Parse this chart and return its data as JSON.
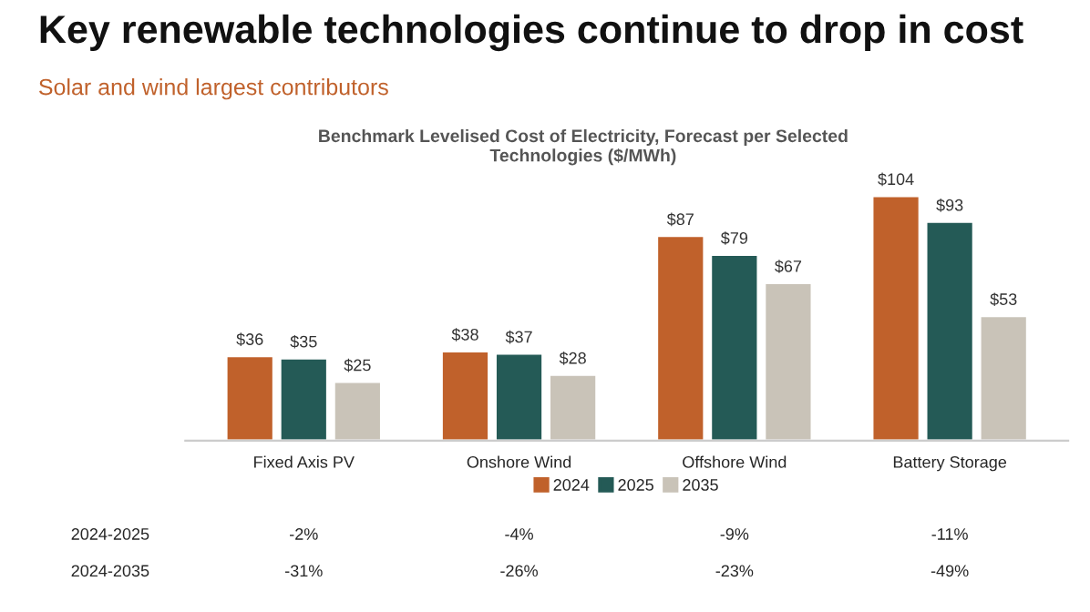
{
  "chart_data": {
    "type": "bar",
    "title": "Key renewable technologies continue to drop in cost",
    "subtitle": "Solar and wind largest contributors",
    "categories": [
      "Fixed Axis PV",
      "Onshore Wind",
      "Offshore Wind",
      "Battery Storage"
    ],
    "series": [
      {
        "name": "2024",
        "color": "#c0612b",
        "values": [
          36,
          38,
          87,
          104
        ],
        "value_labels": [
          "$36",
          "$38",
          "$87",
          "$104"
        ]
      },
      {
        "name": "2025",
        "color": "#245a56",
        "values": [
          35,
          37,
          79,
          93
        ],
        "value_labels": [
          "$35",
          "$37",
          "$79",
          "$93"
        ]
      },
      {
        "name": "2035",
        "color": "#c9c3b8",
        "values": [
          25,
          28,
          67,
          53
        ],
        "value_labels": [
          "$25",
          "$28",
          "$67",
          "$53"
        ]
      }
    ],
    "legend": "bottom",
    "grid": false,
    "annotations": [
      "Benchmark Levelised Cost of Electricity, Forecast per Selected\nTechnologies ($/MWh)",
      "2024-2025",
      "-2%",
      "-4%",
      "-9%",
      "-11%",
      "2024-2035",
      "-31%",
      "-26%",
      "-23%",
      "-49%"
    ]
  }
}
